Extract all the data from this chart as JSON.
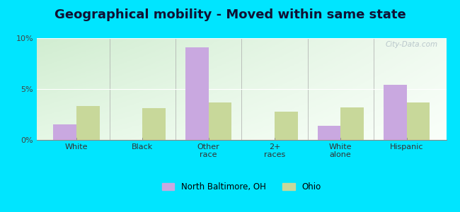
{
  "title": "Geographical mobility - Moved within same state",
  "categories": [
    "White",
    "Black",
    "Other\nrace",
    "2+\nraces",
    "White\nalone",
    "Hispanic"
  ],
  "north_baltimore": [
    1.5,
    0,
    9.1,
    0,
    1.4,
    5.4
  ],
  "ohio": [
    3.3,
    3.1,
    3.7,
    2.8,
    3.2,
    3.7
  ],
  "bar_color_nb": "#c9a8e0",
  "bar_color_oh": "#c8d89a",
  "background_outer": "#00e5ff",
  "ylim": [
    0,
    10
  ],
  "yticks": [
    0,
    5,
    10
  ],
  "ytick_labels": [
    "0%",
    "5%",
    "10%"
  ],
  "legend_nb": "North Baltimore, OH",
  "legend_oh": "Ohio",
  "title_fontsize": 13,
  "bar_width": 0.35,
  "watermark": "City-Data.com"
}
